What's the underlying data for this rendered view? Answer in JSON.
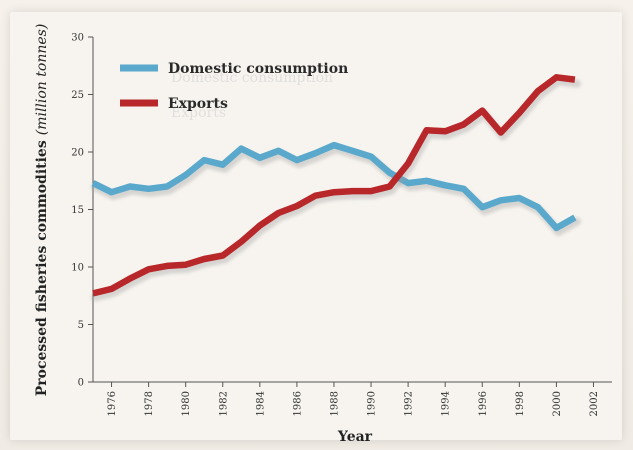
{
  "chart_data": {
    "type": "line",
    "title": "",
    "xlabel": "Year",
    "ylabel": "Processed fisheries commodities",
    "ylabel_italic": "(million tonnes)",
    "xlim": [
      1975,
      2003
    ],
    "ylim": [
      0,
      30
    ],
    "yticks": [
      0,
      5,
      10,
      15,
      20,
      25,
      30
    ],
    "xticks": [
      1976,
      1978,
      1980,
      1982,
      1984,
      1986,
      1988,
      1990,
      1992,
      1994,
      1996,
      1998,
      2000,
      2002
    ],
    "grid": false,
    "legend_position": "top-left",
    "series": [
      {
        "name": "Domestic consumption",
        "color": "#5aa9cc",
        "x": [
          1975,
          1976,
          1977,
          1978,
          1979,
          1980,
          1981,
          1982,
          1983,
          1984,
          1985,
          1986,
          1987,
          1988,
          1989,
          1990,
          1991,
          1992,
          1993,
          1994,
          1995,
          1996,
          1997,
          1998,
          1999,
          2000,
          2001,
          2002,
          2003
        ],
        "values": [
          17.3,
          16.5,
          17.0,
          16.8,
          17.0,
          18.0,
          19.3,
          18.9,
          20.3,
          19.5,
          20.1,
          19.3,
          19.9,
          20.6,
          20.1,
          19.6,
          18.2,
          17.3,
          17.5,
          17.1,
          16.8,
          15.2,
          15.8,
          16.0,
          15.2,
          13.4,
          14.3,
          null,
          null
        ]
      },
      {
        "name": "Exports",
        "color": "#b8282b",
        "x": [
          1975,
          1976,
          1977,
          1978,
          1979,
          1980,
          1981,
          1982,
          1983,
          1984,
          1985,
          1986,
          1987,
          1988,
          1989,
          1990,
          1991,
          1992,
          1993,
          1994,
          1995,
          1996,
          1997,
          1998,
          1999,
          2000,
          2001,
          2002,
          2003
        ],
        "values": [
          7.7,
          8.1,
          9.0,
          9.8,
          10.1,
          10.2,
          10.7,
          11.0,
          12.2,
          13.6,
          14.7,
          15.3,
          16.2,
          16.5,
          16.6,
          16.6,
          17.0,
          19.0,
          21.9,
          21.8,
          22.4,
          23.6,
          21.7,
          23.4,
          25.3,
          26.5,
          26.3,
          null,
          null
        ]
      }
    ]
  }
}
